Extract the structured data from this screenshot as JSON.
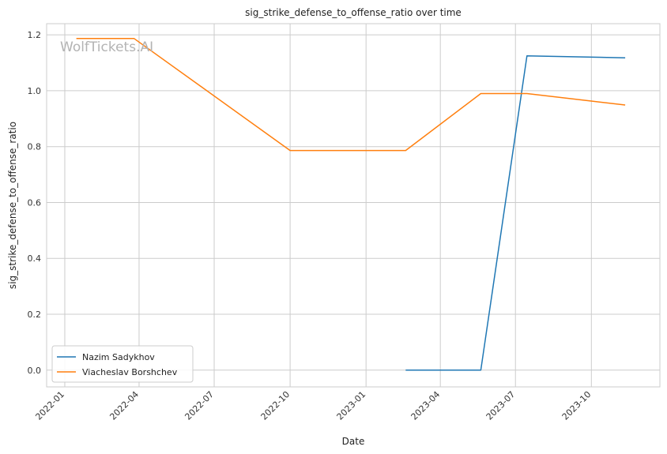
{
  "chart_data": {
    "type": "line",
    "title": "sig_strike_defense_to_offense_ratio over time",
    "xlabel": "Date",
    "ylabel": "sig_strike_defense_to_offense_ratio",
    "watermark": "WolfTickets.AI",
    "x_ticks": [
      "2022-01",
      "2022-04",
      "2022-07",
      "2022-10",
      "2023-01",
      "2023-04",
      "2023-07",
      "2023-10"
    ],
    "y_ticks": [
      "0.0",
      "0.2",
      "0.4",
      "0.6",
      "0.8",
      "1.0",
      "1.2"
    ],
    "ylim": [
      -0.06,
      1.24
    ],
    "xlim": [
      "2021-12-10",
      "2023-12-23"
    ],
    "grid": true,
    "legend_position": "lower-left",
    "series": [
      {
        "name": "Nazim Sadykhov",
        "color": "#1f77b4",
        "points": [
          {
            "x": "2023-02-18",
            "y": 0.0
          },
          {
            "x": "2023-05-20",
            "y": 0.0
          },
          {
            "x": "2023-07-15",
            "y": 1.125
          },
          {
            "x": "2023-11-11",
            "y": 1.118
          }
        ]
      },
      {
        "name": "Viacheslav Borshchev",
        "color": "#ff7f0e",
        "points": [
          {
            "x": "2022-01-15",
            "y": 1.187
          },
          {
            "x": "2022-03-26",
            "y": 1.187
          },
          {
            "x": "2022-10-01",
            "y": 0.786
          },
          {
            "x": "2023-02-18",
            "y": 0.786
          },
          {
            "x": "2023-05-20",
            "y": 0.99
          },
          {
            "x": "2023-07-15",
            "y": 0.99
          },
          {
            "x": "2023-11-11",
            "y": 0.949
          }
        ]
      }
    ]
  }
}
